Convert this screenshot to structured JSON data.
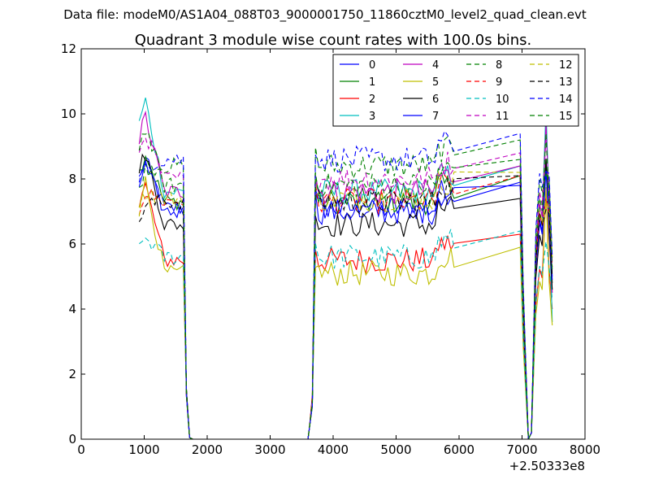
{
  "chart_data": {
    "type": "line",
    "suptitle": "Data file: modeM0/AS1A04_088T03_9000001750_11860cztM0_level2_quad_clean.evt",
    "title": "Quadrant 3 module wise count rates with 100.0s bins.",
    "xlabel": "",
    "ylabel": "",
    "xlim": [
      0,
      8000
    ],
    "ylim": [
      0,
      12
    ],
    "x_offset_label": "+2.50333e8",
    "xticks": [
      0,
      1000,
      2000,
      3000,
      4000,
      5000,
      6000,
      7000,
      8000
    ],
    "yticks": [
      0,
      2,
      4,
      6,
      8,
      10,
      12
    ],
    "legend_location": "upper-right",
    "x_segments": [
      {
        "start": 920,
        "step": 50,
        "count": 18
      },
      {
        "start": 3620,
        "step": 50,
        "count": 47
      }
    ],
    "series": [
      {
        "name": "0",
        "color": "#0000ff",
        "dashed": false,
        "base": 7.1,
        "peak": 8.6,
        "end": 5.0
      },
      {
        "name": "1",
        "color": "#008000",
        "dashed": false,
        "base": 7.3,
        "peak": 8.8,
        "end": 4.8
      },
      {
        "name": "2",
        "color": "#ff0000",
        "dashed": false,
        "base": 5.5,
        "peak": 7.8,
        "end": 4.0
      },
      {
        "name": "3",
        "color": "#00bfbf",
        "dashed": false,
        "base": 7.6,
        "peak": 10.4,
        "end": 3.6
      },
      {
        "name": "4",
        "color": "#bf00bf",
        "dashed": false,
        "base": 7.6,
        "peak": 9.9,
        "end": 4.5
      },
      {
        "name": "5",
        "color": "#bfbf00",
        "dashed": false,
        "base": 5.1,
        "peak": 7.9,
        "end": 3.5
      },
      {
        "name": "6",
        "color": "#000000",
        "dashed": false,
        "base": 6.6,
        "peak": 8.8,
        "end": 4.6
      },
      {
        "name": "7",
        "color": "#0000ff",
        "dashed": false,
        "base": 7.0,
        "peak": 8.4,
        "end": 4.9
      },
      {
        "name": "8",
        "color": "#008000",
        "dashed": true,
        "base": 8.4,
        "peak": 8.3,
        "end": 5.5
      },
      {
        "name": "9",
        "color": "#ff0000",
        "dashed": true,
        "base": 7.3,
        "peak": 7.6,
        "end": 5.3
      },
      {
        "name": "10",
        "color": "#00bfbf",
        "dashed": true,
        "base": 5.6,
        "peak": 6.2,
        "end": 4.3
      },
      {
        "name": "11",
        "color": "#bf00bf",
        "dashed": true,
        "base": 8.0,
        "peak": 9.4,
        "end": 5.4
      },
      {
        "name": "12",
        "color": "#bfbf00",
        "dashed": true,
        "base": 7.4,
        "peak": 7.6,
        "end": 5.6
      },
      {
        "name": "13",
        "color": "#000000",
        "dashed": true,
        "base": 7.3,
        "peak": 7.2,
        "end": 5.0
      },
      {
        "name": "14",
        "color": "#0000ff",
        "dashed": true,
        "base": 8.6,
        "peak": 8.4,
        "end": 5.6
      },
      {
        "name": "15",
        "color": "#008000",
        "dashed": true,
        "base": 7.8,
        "peak": 9.6,
        "end": 5.2
      }
    ]
  }
}
